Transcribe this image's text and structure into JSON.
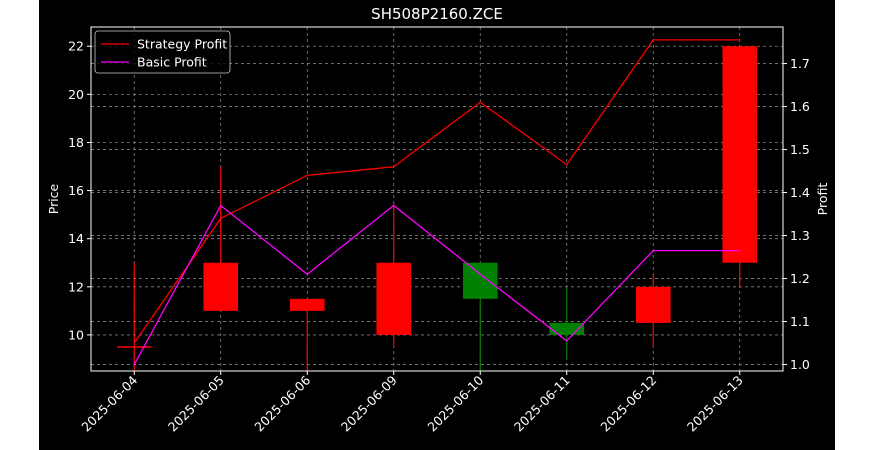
{
  "chart_data": {
    "type": "candlestick",
    "title": "SH508P2160.ZCE",
    "ylabel_left": "Price",
    "ylabel_right": "Profit",
    "categories": [
      "2025-06-04",
      "2025-06-05",
      "2025-06-06",
      "2025-06-09",
      "2025-06-10",
      "2025-06-11",
      "2025-06-12",
      "2025-06-13"
    ],
    "candles": [
      {
        "open": 9.5,
        "close": 9.5,
        "high": 13.0,
        "low": 8.5,
        "color": "#ff0000"
      },
      {
        "open": 11.0,
        "close": 13.0,
        "high": 17.0,
        "low": 11.0,
        "color": "#ff0000"
      },
      {
        "open": 11.0,
        "close": 11.5,
        "high": 11.5,
        "low": 8.5,
        "color": "#ff0000"
      },
      {
        "open": 10.0,
        "close": 13.0,
        "high": 15.5,
        "low": 9.5,
        "color": "#ff0000"
      },
      {
        "open": 13.0,
        "close": 11.5,
        "high": 13.0,
        "low": 8.5,
        "color": "#008000"
      },
      {
        "open": 10.5,
        "close": 10.0,
        "high": 12.0,
        "low": 9.0,
        "color": "#008000"
      },
      {
        "open": 10.5,
        "close": 12.0,
        "high": 12.5,
        "low": 9.5,
        "color": "#ff0000"
      },
      {
        "open": 13.0,
        "close": 22.0,
        "high": 22.0,
        "low": 12.0,
        "color": "#ff0000"
      }
    ],
    "series": [
      {
        "name": "Strategy Profit",
        "color": "#ff0000",
        "values": [
          1.05,
          1.34,
          1.44,
          1.46,
          1.61,
          1.465,
          1.755,
          1.755
        ]
      },
      {
        "name": "Basic Profit",
        "color": "#ff00ff",
        "values": [
          1.0,
          1.37,
          1.21,
          1.37,
          1.21,
          1.055,
          1.265,
          1.265
        ]
      }
    ],
    "ylim_left": [
      8.5,
      22.8
    ],
    "ylim_right": [
      0.985,
      1.785
    ],
    "yticks_left": [
      10,
      12,
      14,
      16,
      18,
      20,
      22
    ],
    "yticks_right": [
      1.0,
      1.1,
      1.2,
      1.3,
      1.4,
      1.5,
      1.6,
      1.7
    ],
    "grid": true,
    "legend_position": "upper left"
  },
  "colors": {
    "background": "#000000",
    "axes": "#ffffff",
    "grid": "#808080",
    "up": "#ff0000",
    "down": "#008000"
  }
}
